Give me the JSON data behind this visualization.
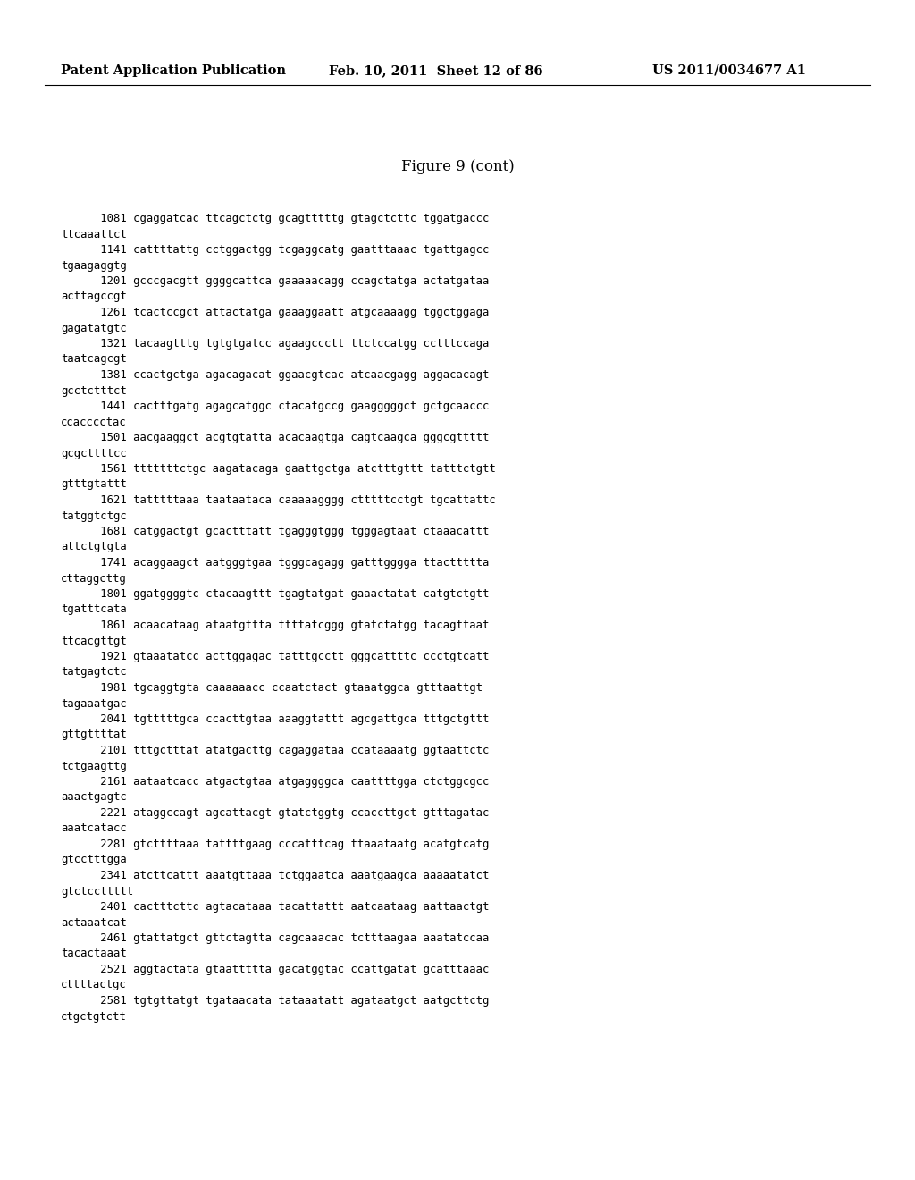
{
  "header_left": "Patent Application Publication",
  "header_middle": "Feb. 10, 2011  Sheet 12 of 86",
  "header_right": "US 2011/0034677 A1",
  "figure_title": "Figure 9 (cont)",
  "background_color": "#ffffff",
  "text_color": "#000000",
  "header_fontsize": 10.5,
  "title_fontsize": 12,
  "content_fontsize": 8.8,
  "content_lines": [
    "      1081 cgaggatcac ttcagctctg gcagtttttg gtagctcttc tggatgaccc",
    "ttcaaattct",
    "      1141 cattttattg cctggactgg tcgaggcatg gaatttaaac tgattgagcc",
    "tgaagaggtg",
    "      1201 gcccgacgtt ggggcattca gaaaaacagg ccagctatga actatgataa",
    "acttagccgt",
    "      1261 tcactccgct attactatga gaaaggaatt atgcaaaagg tggctggaga",
    "gagatatgtc",
    "      1321 tacaagtttg tgtgtgatcc agaagccctt ttctccatgg cctttccaga",
    "taatcagcgt",
    "      1381 ccactgctga agacagacat ggaacgtcac atcaacgagg aggacacagt",
    "gcctctttct",
    "      1441 cactttgatg agagcatggc ctacatgccg gaagggggct gctgcaaccc",
    "ccacccctac",
    "      1501 aacgaaggct acgtgtatta acacaagtga cagtcaagca gggcgttttt",
    "gcgcttttcc",
    "      1561 tttttttctgc aagatacaga gaattgctga atctttgttt tatttctgtt",
    "gtttgtattt",
    "      1621 tatttttaaa taataataca caaaaagggg ctttttcctgt tgcattattc",
    "tatggtctgc",
    "      1681 catggactgt gcactttatt tgagggtggg tgggagtaat ctaaacattt",
    "attctgtgta",
    "      1741 acaggaagct aatgggtgaa tgggcagagg gatttgggga ttacttttta",
    "cttaggcttg",
    "      1801 ggatggggtc ctacaagttt tgagtatgat gaaactatat catgtctgtt",
    "tgatttcata",
    "      1861 acaacataag ataatgttta ttttatcggg gtatctatgg tacagttaat",
    "ttcacgttgt",
    "      1921 gtaaatatcc acttggagac tatttgcctt gggcattttc ccctgtcatt",
    "tatgagtctc",
    "      1981 tgcaggtgta caaaaaacc ccaatctact gtaaatggca gtttaattgt",
    "tagaaatgac",
    "      2041 tgtttttgca ccacttgtaa aaaggtattt agcgattgca tttgctgttt",
    "gttgttttat",
    "      2101 tttgctttat atatgacttg cagaggataa ccataaaatg ggtaattctc",
    "tctgaagttg",
    "      2161 aataatcacc atgactgtaa atgaggggca caattttgga ctctggcgcc",
    "aaactgagtc",
    "      2221 ataggccagt agcattacgt gtatctggtg ccaccttgct gtttagatac",
    "aaatcatacc",
    "      2281 gtcttttaaa tattttgaag cccatttcag ttaaataatg acatgtcatg",
    "gtcctttgga",
    "      2341 atcttcattt aaatgttaaa tctggaatca aaatgaagca aaaaatatct",
    "gtctccttttt",
    "      2401 cactttcttc agtacataaa tacattattt aatcaataag aattaactgt",
    "actaaatcat",
    "      2461 gtattatgct gttctagtta cagcaaacac tctttaagaa aaatatccaa",
    "tacactaaat",
    "      2521 aggtactata gtaattttta gacatggtac ccattgatat gcatttaaac",
    "cttttactgc",
    "      2581 tgtgttatgt tgataacata tataaatatt agataatgct aatgcttctg",
    "ctgctgtctt"
  ]
}
